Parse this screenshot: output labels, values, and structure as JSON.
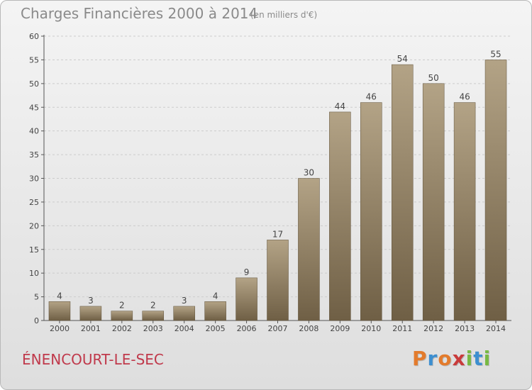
{
  "header": {
    "title": "Charges Financières 2000 à 2014",
    "subtitle": "(en milliers d'€)"
  },
  "footer": {
    "commune": "ÉNENCOURT-LE-SEC",
    "brand_letters": [
      "P",
      "r",
      "o",
      "x",
      "i",
      "t",
      "i"
    ],
    "brand_colors": [
      "#e37b2c",
      "#3d8fd0",
      "#e37b2c",
      "#c93b3b",
      "#78b943",
      "#3d8fd0",
      "#78b943"
    ]
  },
  "colors": {
    "bar_top": "#b3a386",
    "bar_bottom": "#6f5f45",
    "axis": "#555555",
    "grid": "#cccccc",
    "text": "#444444"
  },
  "chart_data": {
    "type": "bar",
    "title": "Charges Financières 2000 à 2014",
    "subtitle": "(en milliers d'€)",
    "categories": [
      "2000",
      "2001",
      "2002",
      "2003",
      "2004",
      "2005",
      "2006",
      "2007",
      "2008",
      "2009",
      "2010",
      "2011",
      "2012",
      "2013",
      "2014"
    ],
    "values": [
      4,
      3,
      2,
      2,
      3,
      4,
      9,
      17,
      30,
      44,
      46,
      54,
      50,
      46,
      55
    ],
    "data_labels": [
      "4",
      "3",
      "2",
      "2",
      "3",
      "4",
      "9",
      "17",
      "30",
      "44",
      "46",
      "54",
      "50",
      "46",
      "55"
    ],
    "yticks": [
      "0",
      "5",
      "10",
      "15",
      "20",
      "25",
      "30",
      "35",
      "40",
      "45",
      "50",
      "55",
      "60"
    ],
    "ylim": [
      0,
      60
    ],
    "xlabel": "",
    "ylabel": "",
    "grid": true,
    "legend": "none"
  }
}
